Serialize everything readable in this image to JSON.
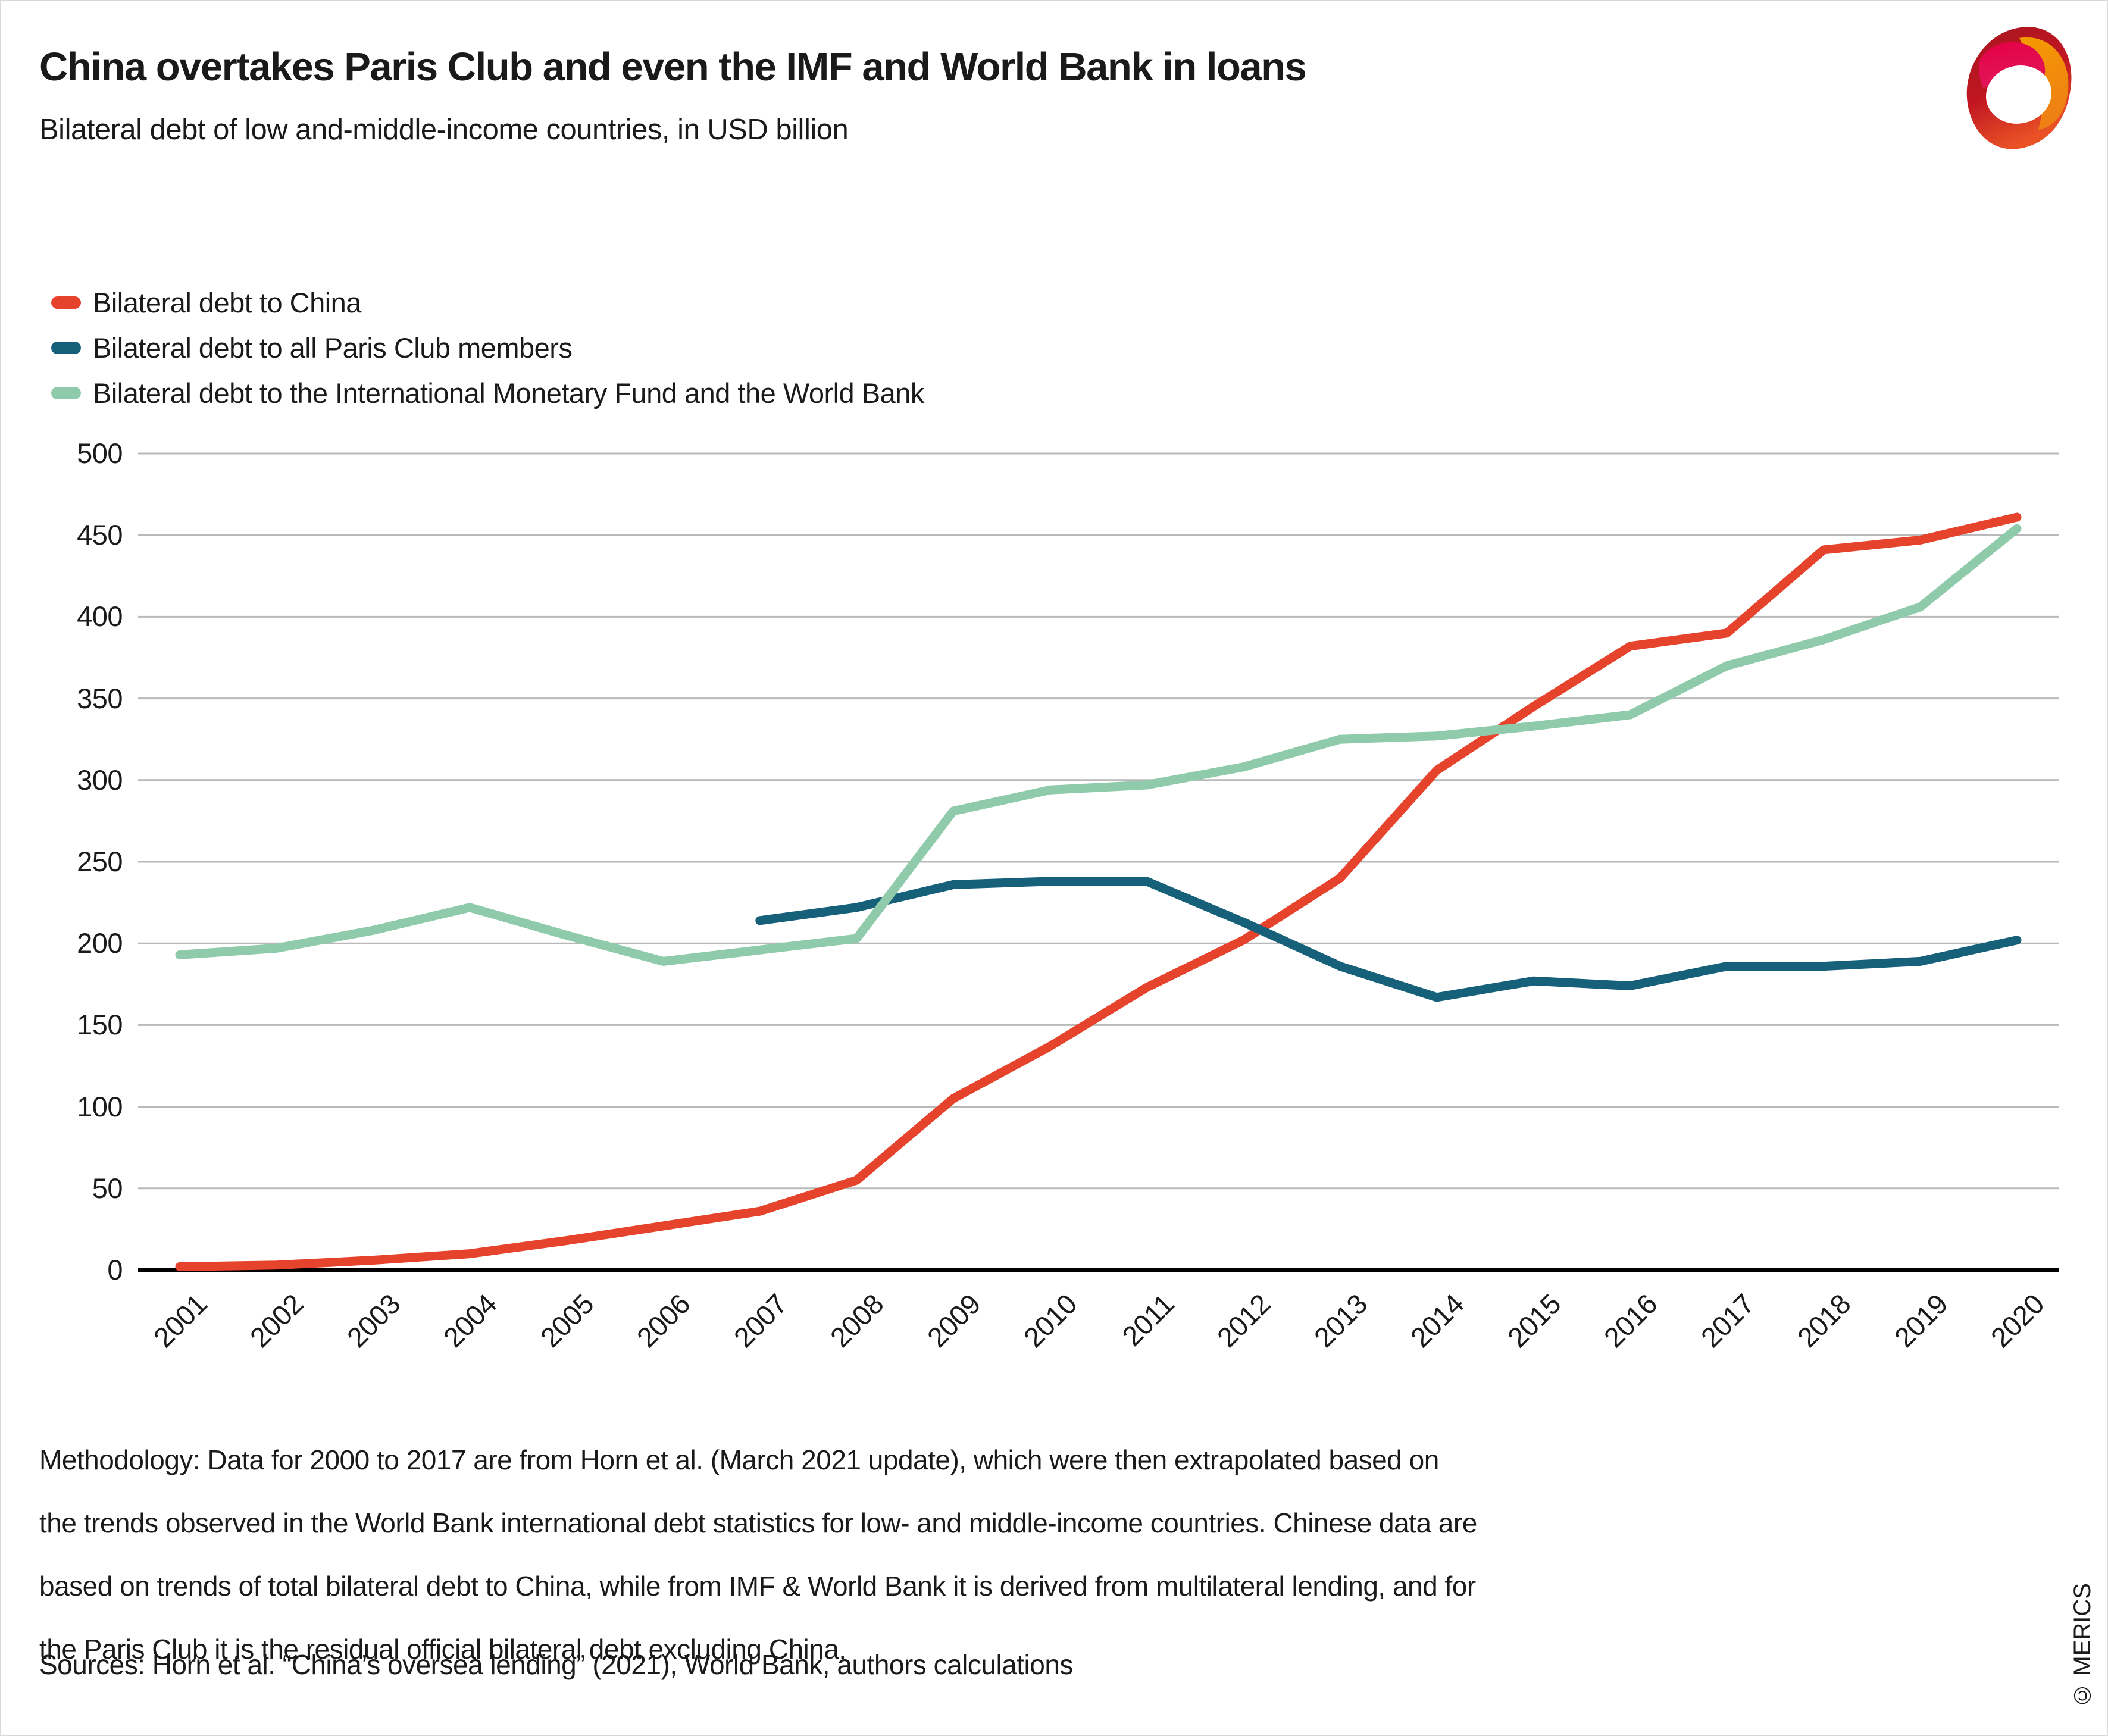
{
  "header": {
    "title": "China overtakes Paris Club and even the IMF and World Bank in loans",
    "subtitle": "Bilateral debt of low and-middle-income countries, in USD billion"
  },
  "legend": {
    "items": [
      {
        "label": "Bilateral debt to China",
        "color": "#e6432d"
      },
      {
        "label": "Bilateral debt to all Paris Club members",
        "color": "#16607a"
      },
      {
        "label": "Bilateral debt to the International Monetary Fund and the World Bank",
        "color": "#8fcbab"
      }
    ]
  },
  "chart_data": {
    "type": "line",
    "x": [
      2001,
      2002,
      2003,
      2004,
      2005,
      2006,
      2007,
      2008,
      2009,
      2010,
      2011,
      2012,
      2013,
      2014,
      2015,
      2016,
      2017,
      2018,
      2019,
      2020
    ],
    "ylim": [
      0,
      500
    ],
    "ytick_step": 50,
    "grid": "horizontal",
    "legend_position": "top-left",
    "series": [
      {
        "name": "Bilateral debt to China",
        "color": "#e6432d",
        "values": [
          2,
          3,
          6,
          10,
          18,
          27,
          36,
          55,
          105,
          137,
          173,
          202,
          240,
          306,
          345,
          382,
          390,
          441,
          447,
          461
        ]
      },
      {
        "name": "Bilateral debt to all Paris Club members",
        "color": "#16607a",
        "values": [
          null,
          null,
          null,
          null,
          null,
          null,
          214,
          222,
          236,
          238,
          238,
          213,
          186,
          167,
          177,
          174,
          186,
          186,
          189,
          202
        ]
      },
      {
        "name": "Bilateral debt to the International Monetary Fund and the World Bank",
        "color": "#8fcbab",
        "values": [
          193,
          197,
          208,
          222,
          205,
          189,
          196,
          203,
          281,
          294,
          297,
          308,
          325,
          327,
          333,
          340,
          370,
          386,
          406,
          454
        ]
      }
    ],
    "colors": {
      "gridline": "#b9b9b9",
      "axis": "#000000",
      "text": "#1a1a1a"
    }
  },
  "footer": {
    "methodology_lines": [
      "Methodology: Data for 2000 to 2017 are from Horn et al. (March 2021 update), which were then extrapolated based on",
      "the trends observed in the World Bank international debt statistics for low- and middle-income countries. Chinese data are",
      "based on trends of total bilateral debt to China, while from IMF & World Bank it is derived from multilateral lending, and for",
      "the Paris Club it is the residual official bilateral debt excluding China."
    ],
    "sources": "Sources: Horn et al. “China’s oversea lending” (2021), World Bank, authors calculations",
    "copyright": "© MERICS"
  }
}
